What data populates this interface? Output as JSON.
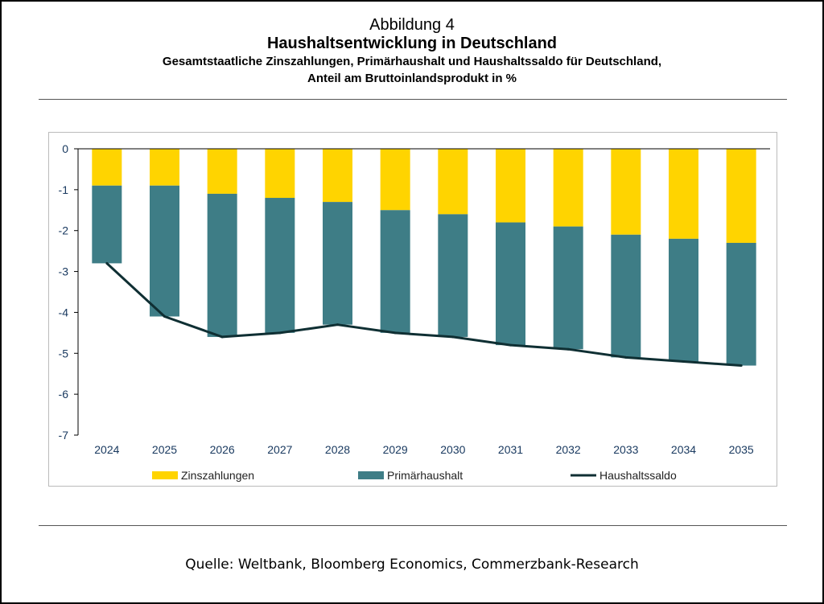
{
  "header": {
    "figure_label": "Abbildung 4",
    "title": "Haushaltsentwicklung in Deutschland",
    "subtitle_line1": "Gesamtstaatliche Zinszahlungen, Primärhaushalt und Haushaltssaldo für Deutschland,",
    "subtitle_line2": "Anteil am Bruttoinlandsprodukt in %"
  },
  "source": "Quelle: Weltbank, Bloomberg Economics, Commerzbank-Research",
  "colors": {
    "zins": "#FFD400",
    "primaer": "#3E7D86",
    "saldo": "#0F2F33",
    "axis": "#000000",
    "tick_text": "#1a3a60"
  },
  "chart_data": {
    "type": "bar",
    "stacked": true,
    "categories": [
      "2024",
      "2025",
      "2026",
      "2027",
      "2028",
      "2029",
      "2030",
      "2031",
      "2032",
      "2033",
      "2034",
      "2035"
    ],
    "series": [
      {
        "name": "Zinszahlungen",
        "kind": "bar",
        "values": [
          -0.9,
          -0.9,
          -1.1,
          -1.2,
          -1.3,
          -1.5,
          -1.6,
          -1.8,
          -1.9,
          -2.1,
          -2.2,
          -2.3
        ]
      },
      {
        "name": "Primärhaushalt",
        "kind": "bar",
        "values": [
          -1.9,
          -3.2,
          -3.5,
          -3.3,
          -3.0,
          -3.0,
          -3.0,
          -3.0,
          -3.0,
          -3.0,
          -3.0,
          -3.0
        ]
      },
      {
        "name": "Haushaltssaldo",
        "kind": "line",
        "values": [
          -2.8,
          -4.1,
          -4.6,
          -4.5,
          -4.3,
          -4.5,
          -4.6,
          -4.8,
          -4.9,
          -5.1,
          -5.2,
          -5.3
        ]
      }
    ],
    "ylim": [
      -7,
      0
    ],
    "yticks": [
      0,
      -1,
      -2,
      -3,
      -4,
      -5,
      -6,
      -7
    ],
    "ytick_labels": [
      "0",
      "-1",
      "-2",
      "-3",
      "-4",
      "-5",
      "-6",
      "-7"
    ],
    "grid": false,
    "legend_position": "bottom",
    "legend": [
      "Zinszahlungen",
      "Primärhaushalt",
      "Haushaltssaldo"
    ]
  }
}
